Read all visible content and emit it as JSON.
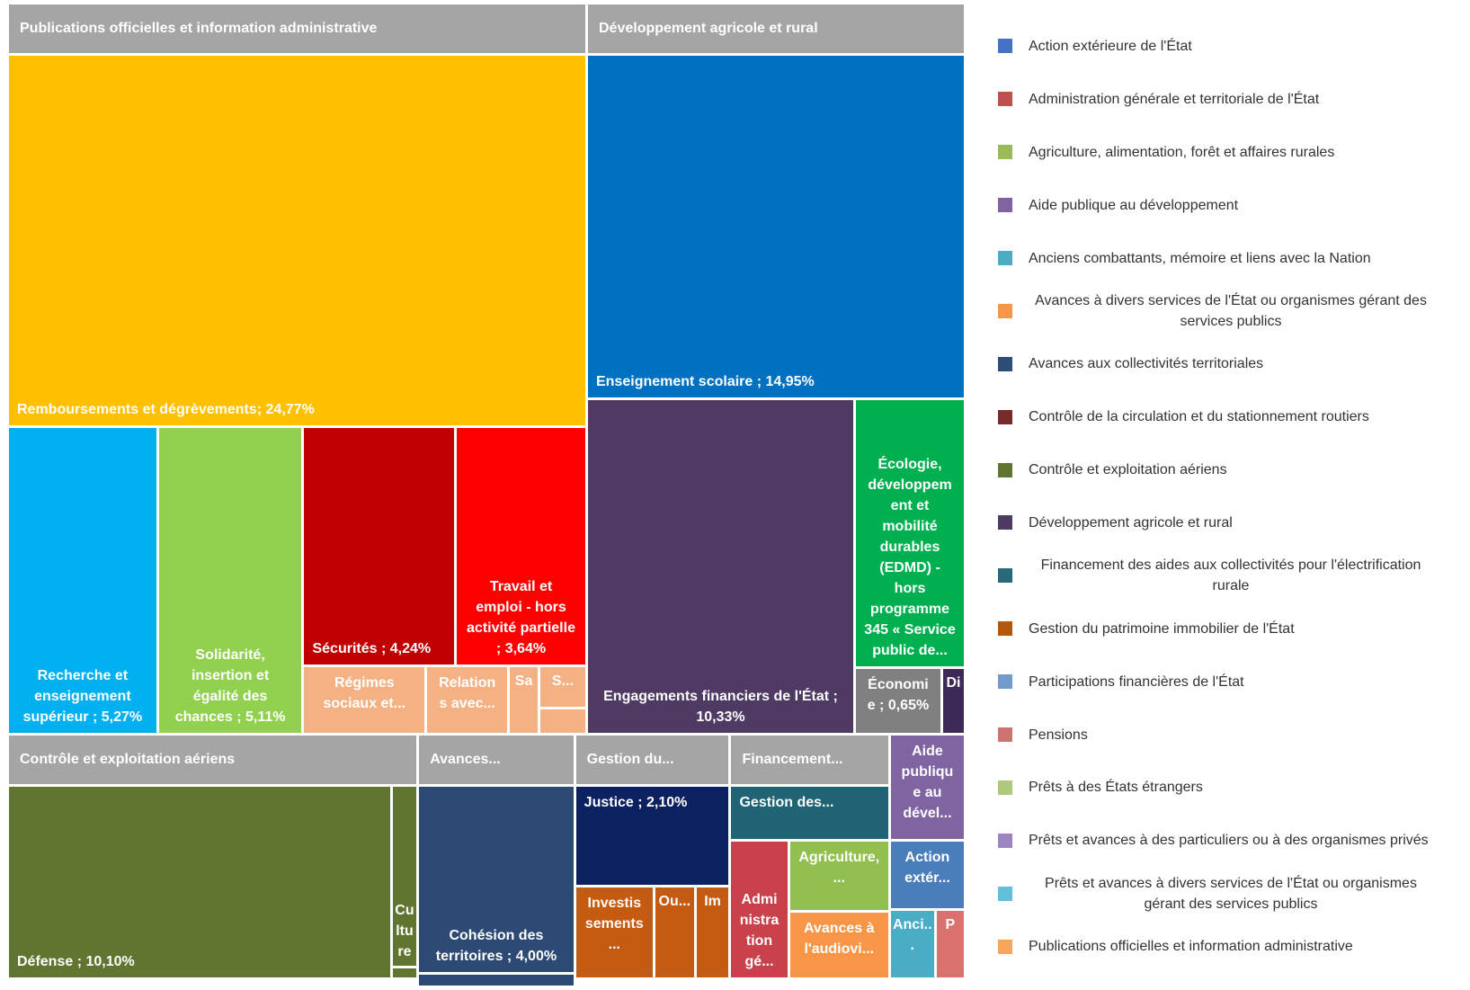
{
  "chart_data": {
    "type": "treemap",
    "groups": [
      {
        "name": "Publications officielles et information administrative",
        "children": [
          {
            "label": "Remboursements et dégrèvements; 24,77%",
            "value": 24.77,
            "color": "#ffc000"
          },
          {
            "label": "Recherche et enseignement supérieur ; 5,27%",
            "value": 5.27,
            "color": "#00b0f0"
          },
          {
            "label": "Solidarité, insertion et égalité des chances ; 5,11%",
            "value": 5.11,
            "color": "#92d050"
          },
          {
            "label": "Sécurités ; 4,24%",
            "value": 4.24,
            "color": "#c00000"
          },
          {
            "label": "Travail et emploi - hors activité partielle ; 3,64%",
            "value": 3.64,
            "color": "#ff0000"
          },
          {
            "label": "Régimes sociaux et...",
            "value": 0.96,
            "color": "#f4b183"
          },
          {
            "label": "Relations avec...",
            "value": 0.64,
            "color": "#f4b183"
          },
          {
            "label": "Sa",
            "value": 0.22,
            "color": "#f4b183"
          },
          {
            "label": "S...",
            "value": 0.23,
            "color": "#f4b183"
          },
          {
            "label": null,
            "value": 0.13,
            "color": "#f4b183"
          }
        ]
      },
      {
        "name": "Développement agricole et rural",
        "children": [
          {
            "label": "Enseignement scolaire ; 14,95%",
            "value": 14.95,
            "color": "#0070c0"
          },
          {
            "label": "Engagements financiers de l'État ; 10,33%",
            "value": 10.33,
            "color": "#4e3a63"
          },
          {
            "label": "Écologie, développement et mobilité durables (EDMD) - hors programme 345 « Service public de...",
            "value": 3.39,
            "color": "#00b050"
          },
          {
            "label": "Économie ; 0,65%",
            "value": 0.65,
            "color": "#808080"
          },
          {
            "label": "Di",
            "value": 0.16,
            "color": "#3e2a56"
          }
        ]
      },
      {
        "name": "Contrôle et exploitation aériens",
        "children": [
          {
            "label": "Défense ; 10,10%",
            "value": 10.1,
            "color": "#5f7530"
          },
          {
            "label": "Culture",
            "value": 0.6,
            "color": "#5f7530"
          },
          {
            "label": null,
            "value": 0.03,
            "color": "#5f7530"
          }
        ]
      },
      {
        "name": "Avances...",
        "children": [
          {
            "label": "Cohésion des territoires ; 4,00%",
            "value": 4.0,
            "color": "#2c4a74"
          },
          {
            "label": null,
            "value": 0.06,
            "color": "#2c4a74"
          }
        ]
      },
      {
        "name": "Gestion du...",
        "children": [
          {
            "label": "Justice ; 2,10%",
            "value": 2.1,
            "color": "#0b2160"
          },
          {
            "label": "Investissements...",
            "value": 1.0,
            "color": "#c55a11"
          },
          {
            "label": "Ou...",
            "value": 0.5,
            "color": "#c55a11"
          },
          {
            "label": "Im",
            "value": 0.42,
            "color": "#c55a11"
          }
        ]
      },
      {
        "name": "Financement...",
        "children": [
          {
            "label": "Gestion des...",
            "value": 1.15,
            "color": "#1f6374"
          },
          {
            "label": "Administration gé...",
            "value": 1.08,
            "color": "#c8414b"
          },
          {
            "label": "Agriculture,...",
            "value": 0.98,
            "color": "#92c050"
          },
          {
            "label": "Avances à l'audiovi...",
            "value": 0.92,
            "color": "#f79646"
          }
        ]
      },
      {
        "name": null,
        "children": [
          {
            "label": "Aide publique au dével...",
            "value": 0.84,
            "color": "#8064a2"
          },
          {
            "label": "Action extér...",
            "value": 0.54,
            "color": "#4a7ebb"
          },
          {
            "label": "Anci...",
            "value": 0.33,
            "color": "#4bacc6"
          },
          {
            "label": "P",
            "value": 0.21,
            "color": "#d9726e"
          }
        ]
      }
    ],
    "legend": [
      {
        "name": "Action extérieure de l'État",
        "color": "#4472c4"
      },
      {
        "name": "Administration générale et territoriale de l'État",
        "color": "#c0504d"
      },
      {
        "name": "Agriculture, alimentation, forêt et affaires rurales",
        "color": "#9bbb59"
      },
      {
        "name": "Aide publique au développement",
        "color": "#8064a2"
      },
      {
        "name": "Anciens combattants, mémoire et liens avec la Nation",
        "color": "#4bacc6"
      },
      {
        "name": "Avances à divers services de l'État ou organismes gérant des services publics",
        "color": "#f79646"
      },
      {
        "name": "Avances aux collectivités territoriales",
        "color": "#2c4d75"
      },
      {
        "name": "Contrôle de la circulation et du stationnement routiers",
        "color": "#772c2a"
      },
      {
        "name": "Contrôle et exploitation aériens",
        "color": "#5f7530"
      },
      {
        "name": "Développement agricole et rural",
        "color": "#4d3b62"
      },
      {
        "name": "Financement des aides aux collectivités pour l'électrification rurale",
        "color": "#276a7c"
      },
      {
        "name": "Gestion du patrimoine immobilier de l'État",
        "color": "#b65708"
      },
      {
        "name": "Participations financières de l'État",
        "color": "#729aca"
      },
      {
        "name": "Pensions",
        "color": "#cd7371"
      },
      {
        "name": "Prêts à des États étrangers",
        "color": "#afc97a"
      },
      {
        "name": "Prêts et avances à des particuliers ou à des organismes privés",
        "color": "#9d86c0"
      },
      {
        "name": "Prêts et avances à divers services de l'État ou organismes gérant des services publics",
        "color": "#5fc0db"
      },
      {
        "name": "Publications officielles et information administrative",
        "color": "#f9a55c"
      }
    ]
  }
}
